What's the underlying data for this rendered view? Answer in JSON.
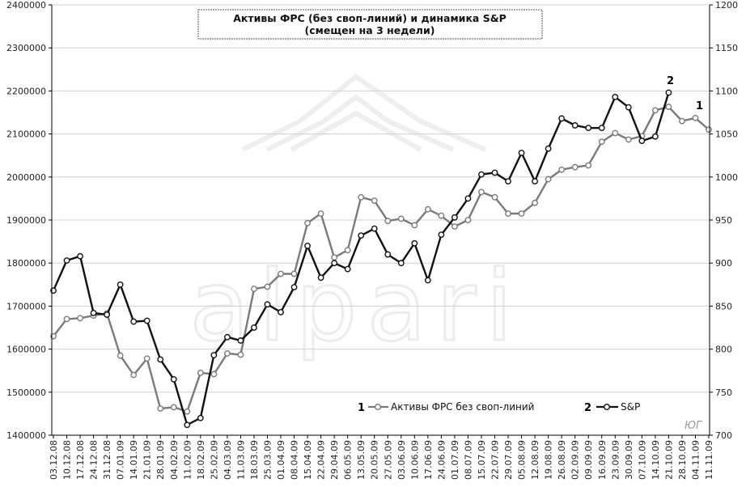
{
  "chart_data": {
    "type": "line",
    "title": "Активы ФРС (без своп-линий)  и динамика S&P",
    "subtitle": "(смещен на 3 недели)",
    "watermark": "alpari",
    "author_mark": "ЮГ",
    "left_axis": {
      "min": 1400000,
      "max": 2400000,
      "step": 100000,
      "ticks": [
        "1400000",
        "1500000",
        "1600000",
        "1700000",
        "1800000",
        "1900000",
        "2000000",
        "2100000",
        "2200000",
        "2300000",
        "2400000"
      ]
    },
    "right_axis": {
      "min": 700,
      "max": 1200,
      "step": 50,
      "ticks": [
        "700",
        "750",
        "800",
        "850",
        "900",
        "950",
        "1000",
        "1050",
        "1100",
        "1150",
        "1200"
      ]
    },
    "x_labels": [
      "03.12.08",
      "10.12.08",
      "17.12.08",
      "24.12.08",
      "31.12.08",
      "07.01.09",
      "14.01.09",
      "21.01.09",
      "28.01.09",
      "04.02.09",
      "11.02.09",
      "18.02.09",
      "25.02.09",
      "04.03.09",
      "11.03.09",
      "18.03.09",
      "25.03.09",
      "01.04.09",
      "08.04.09",
      "15.04.09",
      "22.04.09",
      "29.04.09",
      "06.05.09",
      "13.05.09",
      "20.05.09",
      "27.05.09",
      "03.06.09",
      "10.06.09",
      "17.06.09",
      "24.06.09",
      "01.07.09",
      "08.07.09",
      "15.07.09",
      "22.07.09",
      "29.07.09",
      "05.08.09",
      "12.08.09",
      "19.08.09",
      "26.08.09",
      "02.09.09",
      "09.09.09",
      "16.09.09",
      "23.09.09",
      "30.09.09",
      "07.10.09",
      "14.10.09",
      "21.10.09",
      "28.10.09",
      "04.11.09",
      "11.11.09"
    ],
    "series": [
      {
        "name": "Активы ФРС без своп-линий",
        "marker_label": "1",
        "axis": "left",
        "color": "#7a7a7a",
        "values": [
          1630000,
          1670000,
          1672000,
          1678000,
          1683000,
          1585000,
          1540000,
          1578000,
          1462000,
          1465000,
          1455000,
          1545000,
          1542000,
          1590000,
          1587000,
          1740000,
          1745000,
          1775000,
          1775000,
          1893000,
          1915000,
          1813000,
          1830000,
          1953000,
          1945000,
          1898000,
          1903000,
          1888000,
          1925000,
          1910000,
          1885000,
          1900000,
          1965000,
          1953000,
          1915000,
          1915000,
          1940000,
          1995000,
          2017000,
          2023000,
          2027000,
          2082000,
          2102000,
          2087000,
          2095000,
          2155000,
          2163000,
          2130000,
          2137000,
          2110000
        ]
      },
      {
        "name": "S&P",
        "marker_label": "2",
        "axis": "right",
        "color": "#111111",
        "values": [
          868,
          903,
          908,
          842,
          840,
          875,
          832,
          833,
          788,
          765,
          712,
          720,
          793,
          814,
          810,
          825,
          852,
          843,
          872,
          920,
          883,
          900,
          893,
          932,
          940,
          910,
          900,
          923,
          880,
          933,
          953,
          975,
          1003,
          1005,
          995,
          1028,
          995,
          1033,
          1068,
          1060,
          1057,
          1057,
          1093,
          1081,
          1042,
          1047,
          1098,
          null,
          null,
          null
        ]
      }
    ],
    "grid": "horizontal",
    "legend": "bottom-right"
  }
}
